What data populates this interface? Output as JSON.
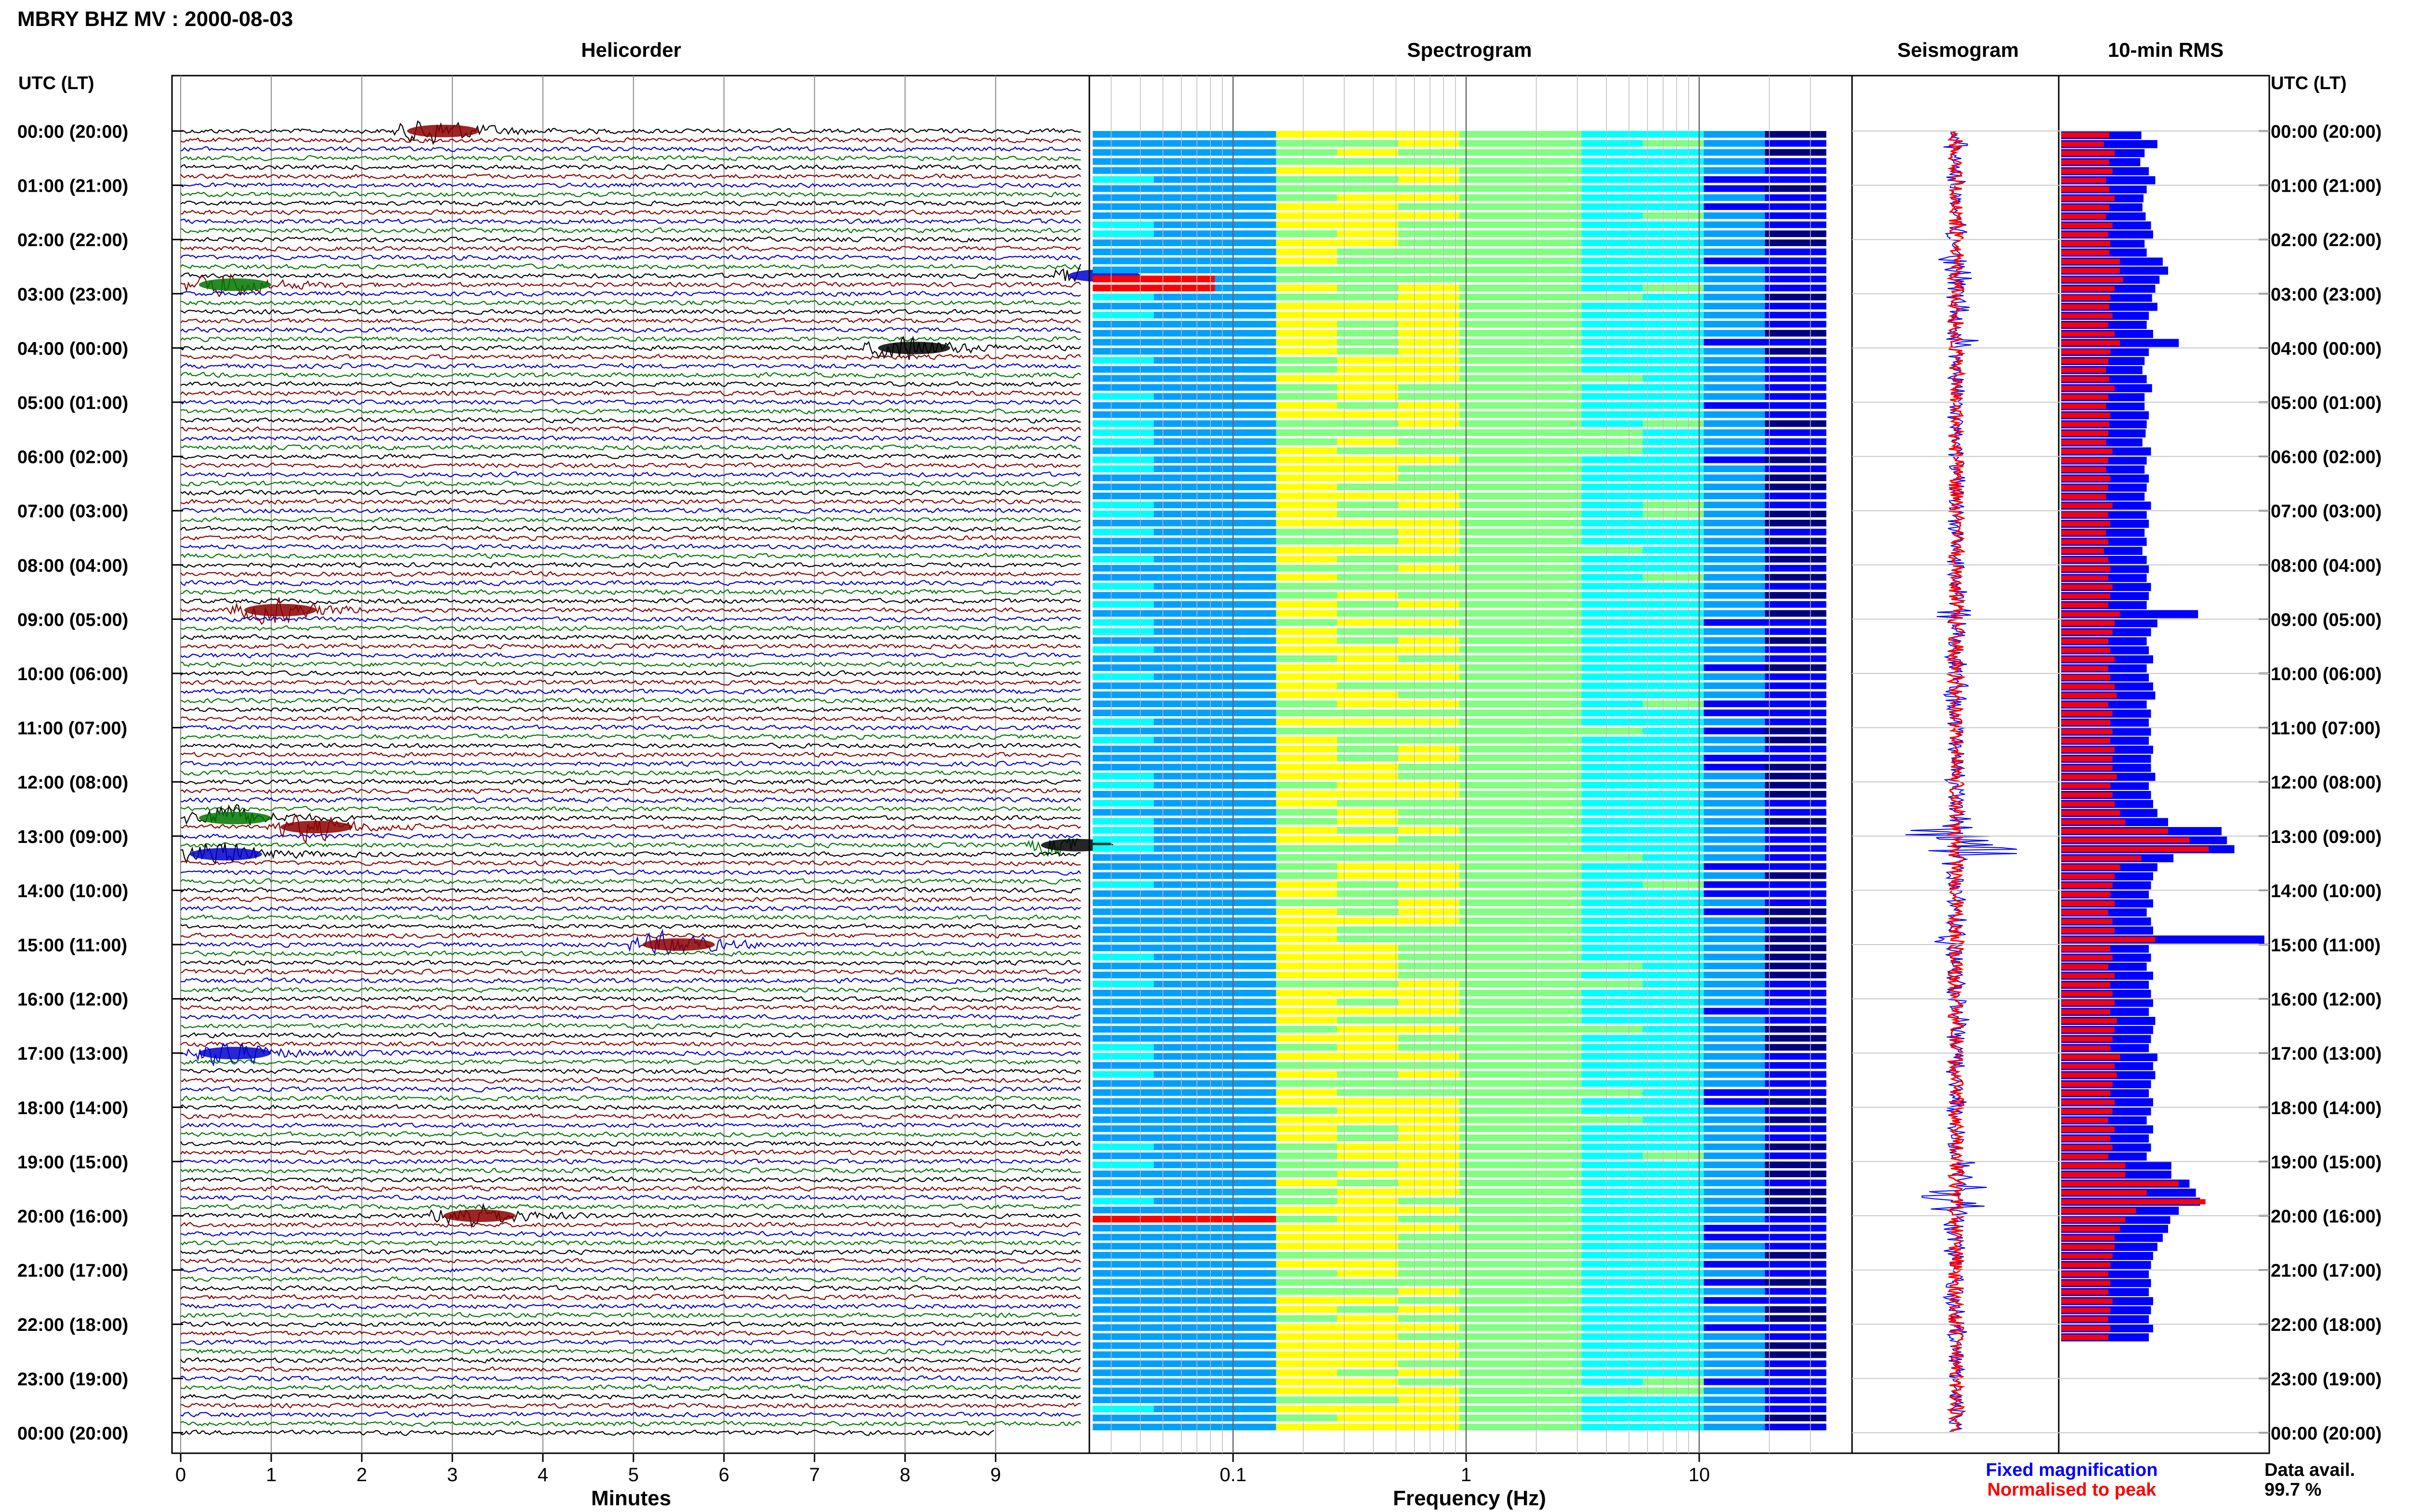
{
  "figure_title": "MBRY BHZ MV : 2000-08-03",
  "time_axis_header": "UTC (LT)",
  "chart_data": [
    {
      "type": "line",
      "title": "Helicorder",
      "xlabel": "Minutes",
      "x_ticks": [
        "0",
        "1",
        "2",
        "3",
        "4",
        "5",
        "6",
        "7",
        "8",
        "9"
      ],
      "xlim": [
        0,
        10
      ],
      "rows_per_hour": 6,
      "row_colors": [
        "#000000",
        "#8b0000",
        "#0000cc",
        "#007700"
      ],
      "grid": true,
      "notable_events": [
        {
          "time_utc": "00:00",
          "minute": 2.6,
          "color": "#8b0000"
        },
        {
          "time_utc": "02:40",
          "minute": 9.9,
          "color": "#0000cc"
        },
        {
          "time_utc": "02:50",
          "minute": 0.3,
          "color": "#007700"
        },
        {
          "time_utc": "04:00",
          "minute": 7.8,
          "color": "#000000"
        },
        {
          "time_utc": "08:50",
          "minute": 0.8,
          "color": "#8b0000"
        },
        {
          "time_utc": "12:40",
          "minute": 0.3,
          "color": "#007700"
        },
        {
          "time_utc": "12:50",
          "minute": 1.2,
          "color": "#8b0000"
        },
        {
          "time_utc": "13:10",
          "minute": 9.6,
          "color": "#000000"
        },
        {
          "time_utc": "13:20",
          "minute": 0.2,
          "color": "#0000cc"
        },
        {
          "time_utc": "15:00",
          "minute": 5.2,
          "color": "#8b0000"
        },
        {
          "time_utc": "17:00",
          "minute": 0.3,
          "color": "#0000cc"
        },
        {
          "time_utc": "20:00",
          "minute": 3.0,
          "color": "#8b0000"
        }
      ]
    },
    {
      "type": "heatmap",
      "title": "Spectrogram",
      "xlabel": "Frequency (Hz)",
      "x_scale": "log",
      "x_ticks": [
        "0.1",
        "1",
        "10"
      ],
      "xlim": [
        0.025,
        40
      ],
      "colormap": [
        "#000080",
        "#0000ff",
        "#00a0ff",
        "#00ffff",
        "#80ff80",
        "#ffff00",
        "#ff8000",
        "#ff0000"
      ]
    },
    {
      "type": "line",
      "title": "Seismogram",
      "legend_fixed": "Fixed magnification",
      "legend_normalised": "Normalised to peak",
      "series_colors": {
        "fixed": "#0000ff",
        "normalised": "#ff0000"
      }
    },
    {
      "type": "bar",
      "title": "10-min RMS",
      "orientation": "horizontal",
      "rows_per_hour": 6,
      "series_colors": {
        "fixed": "#0000ff",
        "normalised": "#ff0000"
      },
      "fixed_values": [
        0.75,
        0.9,
        0.78,
        0.74,
        0.82,
        0.88,
        0.8,
        0.77,
        0.76,
        0.79,
        0.84,
        0.86,
        0.78,
        0.8,
        0.95,
        1.0,
        0.92,
        0.88,
        0.85,
        0.9,
        0.82,
        0.8,
        0.86,
        1.1,
        0.82,
        0.78,
        0.76,
        0.8,
        0.85,
        0.78,
        0.78,
        0.82,
        0.8,
        0.79,
        0.76,
        0.84,
        0.8,
        0.78,
        0.82,
        0.8,
        0.78,
        0.84,
        0.8,
        0.82,
        0.78,
        0.8,
        0.76,
        0.8,
        0.82,
        0.8,
        0.84,
        0.82,
        0.8,
        1.28,
        0.9,
        0.84,
        0.8,
        0.82,
        0.86,
        0.8,
        0.82,
        0.86,
        0.88,
        0.8,
        0.84,
        0.82,
        0.84,
        0.82,
        0.86,
        0.84,
        0.84,
        0.88,
        0.82,
        0.84,
        0.86,
        0.9,
        1.0,
        1.5,
        1.55,
        1.62,
        1.05,
        0.9,
        0.86,
        0.84,
        0.82,
        0.86,
        0.8,
        0.84,
        0.86,
        1.9,
        0.82,
        0.84,
        0.8,
        0.86,
        0.82,
        0.84,
        0.86,
        0.82,
        0.88,
        0.86,
        0.84,
        0.82,
        0.9,
        0.86,
        0.88,
        0.84,
        0.82,
        0.86,
        0.84,
        0.8,
        0.86,
        0.82,
        0.84,
        0.8,
        1.03,
        1.03,
        1.2,
        1.26,
        1.3,
        1.1,
        1.02,
        1.0,
        0.95,
        0.9,
        0.86,
        0.84,
        0.82,
        0.84,
        0.82,
        0.86,
        0.84,
        0.82,
        0.86,
        0.82
      ],
      "normalised_values": [
        0.45,
        0.4,
        0.5,
        0.45,
        0.48,
        0.42,
        0.45,
        0.5,
        0.45,
        0.42,
        0.48,
        0.44,
        0.46,
        0.45,
        0.55,
        0.55,
        0.58,
        0.5,
        0.46,
        0.45,
        0.48,
        0.44,
        0.5,
        0.55,
        0.46,
        0.44,
        0.42,
        0.45,
        0.5,
        0.44,
        0.42,
        0.46,
        0.45,
        0.44,
        0.42,
        0.48,
        0.44,
        0.42,
        0.46,
        0.44,
        0.42,
        0.48,
        0.44,
        0.46,
        0.42,
        0.44,
        0.4,
        0.44,
        0.46,
        0.44,
        0.48,
        0.46,
        0.44,
        0.55,
        0.5,
        0.48,
        0.44,
        0.46,
        0.5,
        0.44,
        0.46,
        0.5,
        0.52,
        0.44,
        0.48,
        0.46,
        0.48,
        0.46,
        0.5,
        0.48,
        0.48,
        0.52,
        0.46,
        0.48,
        0.5,
        0.55,
        0.6,
        1.0,
        1.2,
        1.38,
        0.75,
        0.55,
        0.5,
        0.48,
        0.46,
        0.5,
        0.44,
        0.48,
        0.5,
        0.88,
        0.46,
        0.48,
        0.44,
        0.5,
        0.46,
        0.48,
        0.5,
        0.46,
        0.52,
        0.5,
        0.48,
        0.46,
        0.55,
        0.5,
        0.52,
        0.48,
        0.46,
        0.5,
        0.48,
        0.44,
        0.5,
        0.46,
        0.48,
        0.44,
        0.6,
        0.6,
        1.1,
        0.8,
        1.35,
        0.7,
        0.6,
        0.55,
        0.5,
        0.5,
        0.48,
        0.46,
        0.44,
        0.46,
        0.44,
        0.48,
        0.46,
        0.44,
        0.46,
        0.44
      ]
    }
  ],
  "time_labels": [
    "00:00 (20:00)",
    "01:00 (21:00)",
    "02:00 (22:00)",
    "03:00 (23:00)",
    "04:00 (00:00)",
    "05:00 (01:00)",
    "06:00 (02:00)",
    "07:00 (03:00)",
    "08:00 (04:00)",
    "09:00 (05:00)",
    "10:00 (06:00)",
    "11:00 (07:00)",
    "12:00 (08:00)",
    "13:00 (09:00)",
    "14:00 (10:00)",
    "15:00 (11:00)",
    "16:00 (12:00)",
    "17:00 (13:00)",
    "18:00 (14:00)",
    "19:00 (15:00)",
    "20:00 (16:00)",
    "21:00 (17:00)",
    "22:00 (18:00)",
    "23:00 (19:00)",
    "00:00 (20:00)"
  ],
  "data_avail_label": "Data avail.",
  "data_avail_value": "99.7 %"
}
